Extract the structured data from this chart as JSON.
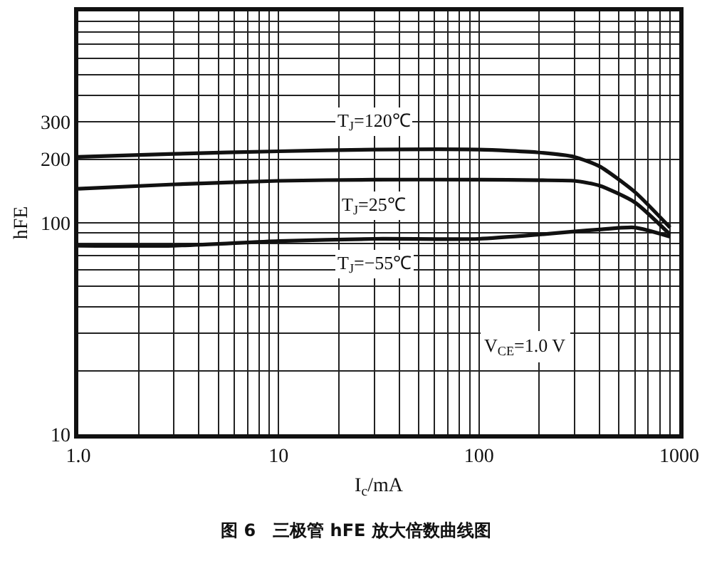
{
  "chart_data": {
    "type": "line",
    "title": "图 6　三极管 hFE 放大倍数曲线图",
    "xlabel": "I$_{c}$/mA",
    "ylabel": "hFE",
    "log": "xy",
    "grid": true,
    "legend": false,
    "marker": "none",
    "line_style": "solid",
    "x": [
      1,
      3,
      10,
      30,
      100,
      200,
      300,
      400,
      600,
      900
    ],
    "xlim": [
      1,
      1000
    ],
    "xticks": [
      {
        "value": 1,
        "label": "1.0"
      },
      {
        "value": 2,
        "label": null
      },
      {
        "value": 3,
        "label": null
      },
      {
        "value": 4,
        "label": null
      },
      {
        "value": 5,
        "label": null
      },
      {
        "value": 6,
        "label": null
      },
      {
        "value": 7,
        "label": null
      },
      {
        "value": 8,
        "label": null
      },
      {
        "value": 9,
        "label": null
      },
      10,
      {
        "value": 20,
        "label": null
      },
      {
        "value": 30,
        "label": null
      },
      {
        "value": 40,
        "label": null
      },
      {
        "value": 50,
        "label": null
      },
      {
        "value": 60,
        "label": null
      },
      {
        "value": 70,
        "label": null
      },
      {
        "value": 80,
        "label": null
      },
      {
        "value": 90,
        "label": null
      },
      100,
      {
        "value": 200,
        "label": null
      },
      {
        "value": 300,
        "label": null
      },
      {
        "value": 400,
        "label": null
      },
      {
        "value": 500,
        "label": null
      },
      {
        "value": 600,
        "label": null
      },
      {
        "value": 700,
        "label": null
      },
      {
        "value": 800,
        "label": null
      },
      {
        "value": 900,
        "label": null
      },
      1000
    ],
    "ylim": [
      10,
      1000
    ],
    "yticks": [
      10,
      {
        "value": 20,
        "label": null
      },
      {
        "value": 30,
        "label": null
      },
      {
        "value": 40,
        "label": null
      },
      {
        "value": 50,
        "label": null
      },
      {
        "value": 60,
        "label": null
      },
      {
        "value": 70,
        "label": null
      },
      {
        "value": 80,
        "label": null
      },
      {
        "value": 90,
        "label": null
      },
      100,
      200,
      300,
      {
        "value": 400,
        "label": null
      },
      {
        "value": 500,
        "label": null
      },
      {
        "value": 600,
        "label": null
      },
      {
        "value": 700,
        "label": null
      },
      {
        "value": 800,
        "label": null
      },
      {
        "value": 900,
        "label": null
      }
    ],
    "series": [
      {
        "name": "T$_{J}$=120℃",
        "color": "#111111",
        "values": [
          205,
          212,
          218,
          222,
          222,
          215,
          205,
          185,
          140,
          95
        ]
      },
      {
        "name": "T$_{J}$=25℃",
        "color": "#111111",
        "values": [
          145,
          152,
          158,
          160,
          160,
          159,
          158,
          150,
          125,
          88
        ]
      },
      {
        "name": "T$_{J}$=−55℃",
        "color": "#111111",
        "values": [
          78,
          78,
          82,
          84,
          84,
          88,
          91,
          93,
          95,
          86
        ]
      }
    ],
    "annotations": [
      "V$_{CE}$=1.0 V"
    ]
  }
}
